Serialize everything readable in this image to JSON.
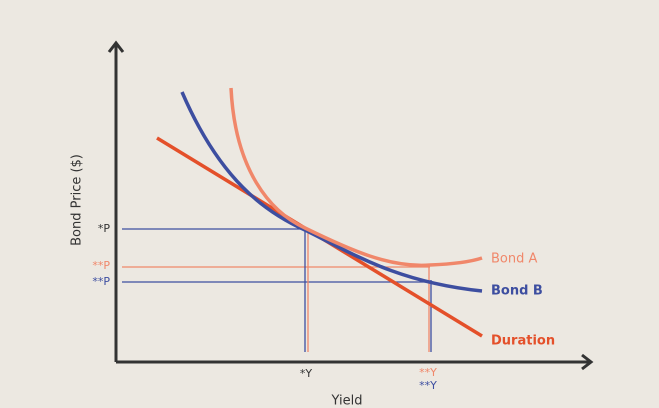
{
  "axes": {
    "y_label": "Bond Price ($)",
    "x_label": "Yield"
  },
  "price_labels": [
    "*P",
    "**P",
    "**P"
  ],
  "yield_labels": [
    "*Y",
    "**Y",
    "**Y"
  ],
  "curve_labels": [
    "Bond A",
    "Bond B",
    "Duration"
  ]
}
